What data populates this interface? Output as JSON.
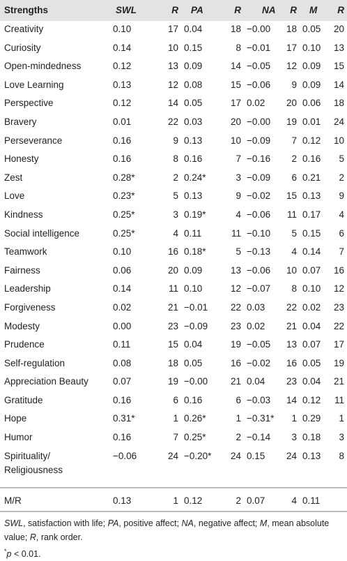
{
  "table": {
    "header": [
      "Strengths",
      "SWL",
      "R",
      "PA",
      "R",
      "NA",
      "R",
      "M",
      "R"
    ],
    "rows": [
      [
        "Creativity",
        "0.10",
        "17",
        "0.04",
        "18",
        "−0.00",
        "18",
        "0.05",
        "20"
      ],
      [
        "Curiosity",
        "0.14",
        "10",
        "0.15",
        "8",
        "−0.01",
        "17",
        "0.10",
        "13"
      ],
      [
        "Open-mindedness",
        "0.12",
        "13",
        "0.09",
        "14",
        "−0.05",
        "12",
        "0.09",
        "15"
      ],
      [
        "Love Learning",
        "0.13",
        "12",
        "0.08",
        "15",
        "−0.06",
        "9",
        "0.09",
        "14"
      ],
      [
        "Perspective",
        "0.12",
        "14",
        "0.05",
        "17",
        "0.02",
        "20",
        "0.06",
        "18"
      ],
      [
        "Bravery",
        "0.01",
        "22",
        "0.03",
        "20",
        "−0.00",
        "19",
        "0.01",
        "24"
      ],
      [
        "Perseverance",
        "0.16",
        "9",
        "0.13",
        "10",
        "−0.09",
        "7",
        "0.12",
        "10"
      ],
      [
        "Honesty",
        "0.16",
        "8",
        "0.16",
        "7",
        "−0.16",
        "2",
        "0.16",
        "5"
      ],
      [
        "Zest",
        "0.28*",
        "2",
        "0.24*",
        "3",
        "−0.09",
        "6",
        "0.21",
        "2"
      ],
      [
        "Love",
        "0.23*",
        "5",
        "0.13",
        "9",
        "−0.02",
        "15",
        "0.13",
        "9"
      ],
      [
        "Kindness",
        "0.25*",
        "3",
        "0.19*",
        "4",
        "−0.06",
        "11",
        "0.17",
        "4"
      ],
      [
        "Social intelligence",
        "0.25*",
        "4",
        "0.11",
        "11",
        "−0.10",
        "5",
        "0.15",
        "6"
      ],
      [
        "Teamwork",
        "0.10",
        "16",
        "0.18*",
        "5",
        "−0.13",
        "4",
        "0.14",
        "7"
      ],
      [
        "Fairness",
        "0.06",
        "20",
        "0.09",
        "13",
        "−0.06",
        "10",
        "0.07",
        "16"
      ],
      [
        "Leadership",
        "0.14",
        "11",
        "0.10",
        "12",
        "−0.07",
        "8",
        "0.10",
        "12"
      ],
      [
        "Forgiveness",
        "0.02",
        "21",
        "−0.01",
        "22",
        "0.03",
        "22",
        "0.02",
        "23"
      ],
      [
        "Modesty",
        "0.00",
        "23",
        "−0.09",
        "23",
        "0.02",
        "21",
        "0.04",
        "22"
      ],
      [
        "Prudence",
        "0.11",
        "15",
        "0.04",
        "19",
        "−0.05",
        "13",
        "0.07",
        "17"
      ],
      [
        "Self-regulation",
        "0.08",
        "18",
        "0.05",
        "16",
        "−0.02",
        "16",
        "0.05",
        "19"
      ],
      [
        "Appreciation Beauty",
        "0.07",
        "19",
        "−0.00",
        "21",
        "0.04",
        "23",
        "0.04",
        "21"
      ],
      [
        "Gratitude",
        "0.16",
        "6",
        "0.16",
        "6",
        "−0.03",
        "14",
        "0.12",
        "11"
      ],
      [
        "Hope",
        "0.31*",
        "1",
        "0.26*",
        "1",
        "−0.31*",
        "1",
        "0.29",
        "1"
      ],
      [
        "Humor",
        "0.16",
        "7",
        "0.25*",
        "2",
        "−0.14",
        "3",
        "0.18",
        "3"
      ],
      [
        "Spirituality/ Religiousness",
        "−0.06",
        "24",
        "−0.20*",
        "24",
        "0.15",
        "24",
        "0.13",
        "8"
      ]
    ],
    "summary": [
      "M/R",
      "0.13",
      "1",
      "0.12",
      "2",
      "0.07",
      "4",
      "0.11"
    ],
    "note": [
      "SWL",
      ", satisfaction with life; ",
      "PA",
      ", positive affect; ",
      "NA",
      ", negative affect; ",
      "M",
      ", mean absolute value; ",
      "R",
      ", rank order."
    ],
    "footnote": [
      "*",
      "p",
      " < 0.01."
    ]
  }
}
